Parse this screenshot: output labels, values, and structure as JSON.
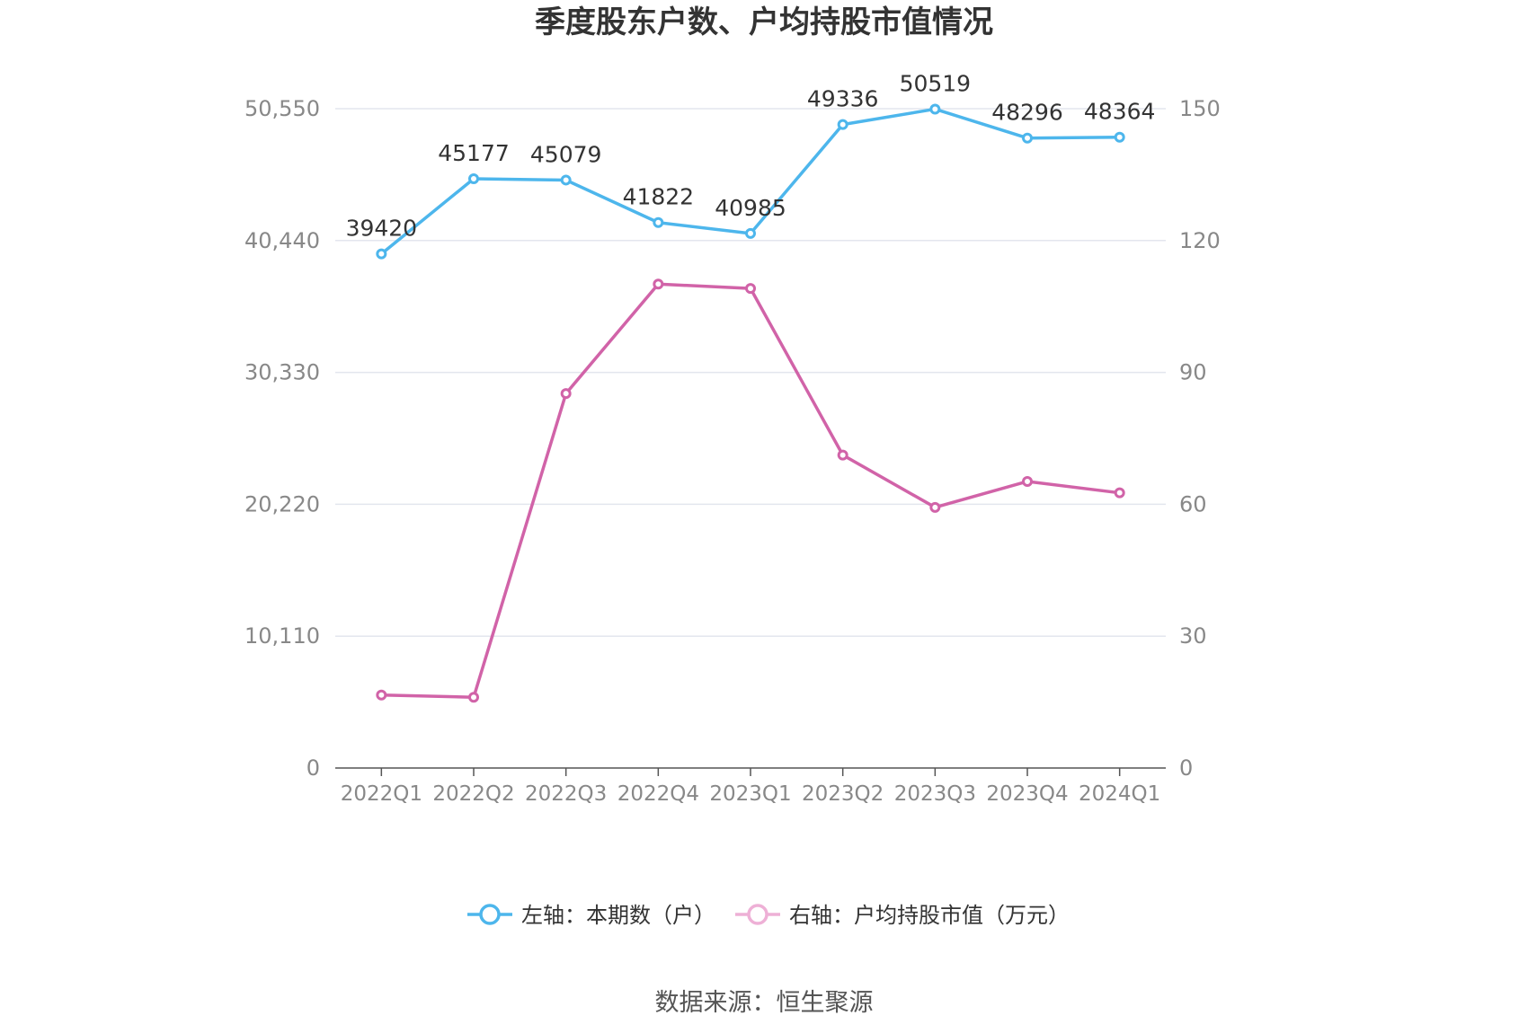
{
  "chart_data": {
    "type": "line",
    "title": "季度股东户数、户均持股市值情况",
    "categories": [
      "2022Q1",
      "2022Q2",
      "2022Q3",
      "2022Q4",
      "2023Q1",
      "2023Q2",
      "2023Q3",
      "2023Q4",
      "2024Q1"
    ],
    "left_axis": {
      "ylim": [
        0,
        50550
      ],
      "ticks": [
        0,
        10110,
        20220,
        30330,
        40440,
        50550
      ],
      "tick_labels": [
        "0",
        "10,110",
        "20,220",
        "30,330",
        "40,440",
        "50,550"
      ]
    },
    "right_axis": {
      "ylim": [
        0,
        150
      ],
      "ticks": [
        0,
        30,
        60,
        90,
        120,
        150
      ],
      "tick_labels": [
        "0",
        "30",
        "60",
        "90",
        "120",
        "150"
      ]
    },
    "series": [
      {
        "name": "左轴：本期数（户）",
        "axis": "left",
        "color": "#4db6ec",
        "values": [
          39420,
          45177,
          45079,
          41822,
          40985,
          49336,
          50519,
          48296,
          48364
        ],
        "labels": [
          "39420",
          "45177",
          "45079",
          "41822",
          "40985",
          "49336",
          "50519",
          "48296",
          "48364"
        ]
      },
      {
        "name": "右轴：户均持股市值（万元）",
        "axis": "right",
        "color": "#d163a8",
        "legend_color": "#eeb0d6",
        "values": [
          16.6,
          16.1,
          85.2,
          110.1,
          109.1,
          71.2,
          59.3,
          65.2,
          62.6
        ]
      }
    ],
    "legend_position": "bottom",
    "grid": true
  },
  "source": "数据来源：恒生聚源"
}
